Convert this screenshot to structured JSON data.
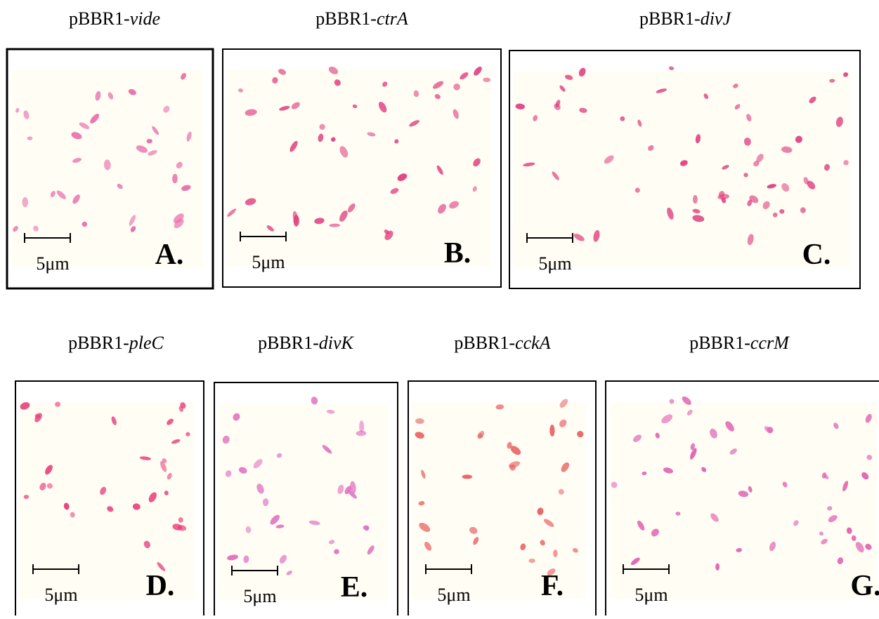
{
  "figure": {
    "panels": [
      {
        "prefix": "pBBR1-",
        "gene": "vide",
        "letter": "A.",
        "scale": "5μm"
      },
      {
        "prefix": "pBBR1-",
        "gene": "ctrA",
        "letter": "B.",
        "scale": "5μm"
      },
      {
        "prefix": "pBBR1-",
        "gene": "divJ",
        "letter": "C.",
        "scale": "5μm"
      },
      {
        "prefix": "pBBR1-",
        "gene": "pleC",
        "letter": "D.",
        "scale": "5μm"
      },
      {
        "prefix": "pBBR1-",
        "gene": "divK",
        "letter": "E.",
        "scale": "5μm"
      },
      {
        "prefix": "pBBR1-",
        "gene": "cckA",
        "letter": "F.",
        "scale": "5μm"
      },
      {
        "prefix": "pBBR1-",
        "gene": "ccrM",
        "letter": "G.",
        "scale": "5μm"
      }
    ]
  }
}
